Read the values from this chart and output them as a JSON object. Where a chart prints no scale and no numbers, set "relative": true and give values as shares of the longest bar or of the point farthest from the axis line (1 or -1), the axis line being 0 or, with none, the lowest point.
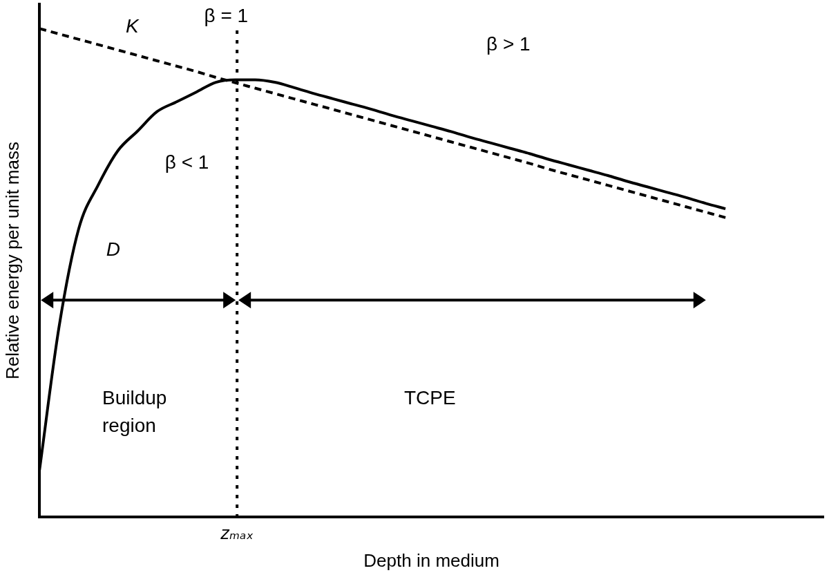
{
  "chart_data": {
    "type": "line",
    "relative": true,
    "xlabel": "Depth in medium",
    "ylabel": "Relative energy per unit mass",
    "categories": [
      null,
      null,
      null,
      null,
      null,
      null,
      null,
      null,
      null,
      null,
      null,
      null,
      null,
      null,
      null,
      null,
      null,
      null,
      null,
      null,
      null,
      null,
      null,
      null,
      null,
      null,
      null,
      null,
      null,
      null,
      null,
      null,
      null,
      null,
      null,
      null,
      null,
      null,
      null,
      null,
      null
    ],
    "series": [
      {
        "name": "D",
        "color": "#000000",
        "line_style": "solid",
        "values": [
          0.096,
          0.39,
          0.59,
          0.68,
          0.75,
          0.79,
          0.83,
          0.85,
          0.87,
          0.89,
          0.895,
          0.895,
          0.89,
          0.879,
          0.867,
          0.856,
          0.845,
          0.834,
          0.822,
          0.811,
          0.8,
          0.789,
          0.777,
          0.766,
          0.755,
          0.744,
          0.732,
          0.721,
          0.71,
          0.699,
          0.687,
          0.676,
          0.665,
          0.654,
          0.642,
          0.631,
          null,
          null,
          null,
          null,
          null
        ]
      },
      {
        "name": "K",
        "color": "#000000",
        "line_style": "dashed",
        "values": [
          1.0,
          0.989,
          0.978,
          0.967,
          0.956,
          0.945,
          0.934,
          0.923,
          0.912,
          0.9,
          0.889,
          0.878,
          0.867,
          0.856,
          0.845,
          0.834,
          0.823,
          0.812,
          0.801,
          0.79,
          0.779,
          0.768,
          0.757,
          0.746,
          0.735,
          0.724,
          0.712,
          0.701,
          0.69,
          0.679,
          0.668,
          0.657,
          0.646,
          0.635,
          0.624,
          0.613,
          null,
          null,
          null,
          null,
          null
        ]
      }
    ],
    "annotations": [
      "β = 1",
      "β > 1",
      "β < 1",
      "Buildup region",
      "TCPE",
      "zₘₐₓ"
    ],
    "legend": false,
    "grid": false,
    "marker": "none"
  }
}
